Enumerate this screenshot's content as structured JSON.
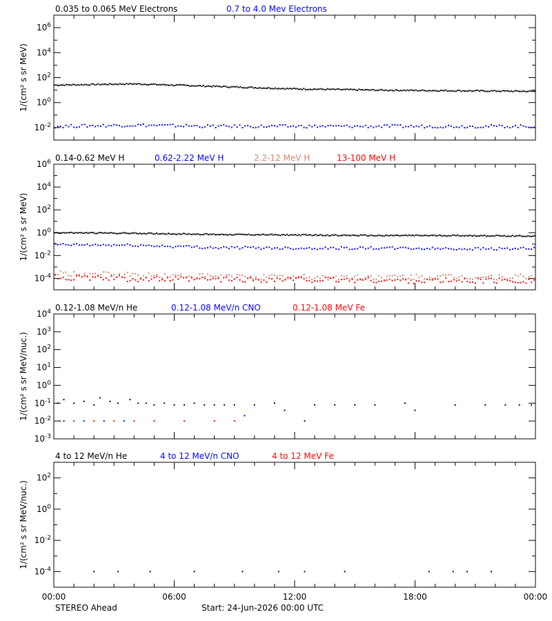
{
  "footer": {
    "spacecraft": "STEREO Ahead",
    "start": "Start: 24-Jun-2026 00:00 UTC"
  },
  "x_axis": {
    "range_hours": [
      0,
      24
    ],
    "ticks": [
      {
        "hour": 0,
        "label": "00:00"
      },
      {
        "hour": 6,
        "label": "06:00"
      },
      {
        "hour": 12,
        "label": "12:00"
      },
      {
        "hour": 18,
        "label": "18:00"
      },
      {
        "hour": 24,
        "label": "00:00"
      }
    ]
  },
  "colors": {
    "black": "#000000",
    "blue": "#0000ff",
    "tan": "#d2846e",
    "red": "#ff0000"
  },
  "chart_data": [
    {
      "type": "scatter",
      "ylabel": "1/(cm² s sr MeV)",
      "yscale": "log",
      "ylim_exp": [
        -3,
        7
      ],
      "ytick_exps": [
        -2,
        0,
        2,
        4,
        6
      ],
      "legend": [
        {
          "name": "0.035 to 0.065 MeV Electrons",
          "color": "#000000"
        },
        {
          "name": "0.7 to 4.0 Mev Electrons",
          "color": "#0000ff"
        }
      ],
      "series": [
        {
          "name": "0.035 to 0.065 MeV Electrons",
          "color": "#000000",
          "hours": [
            0,
            4,
            8,
            12,
            16,
            20,
            24
          ],
          "log10_values": [
            1.4,
            1.5,
            1.3,
            1.1,
            1.0,
            0.95,
            0.9
          ]
        },
        {
          "name": "0.7 to 4.0 Mev Electrons",
          "color": "#0000ff",
          "hours": [
            0,
            4,
            8,
            12,
            16,
            20,
            24
          ],
          "log10_values": [
            -1.9,
            -1.8,
            -1.9,
            -1.9,
            -1.9,
            -1.9,
            -1.9
          ]
        }
      ]
    },
    {
      "type": "scatter",
      "ylabel": "1/(cm² s sr MeV)",
      "yscale": "log",
      "ylim_exp": [
        -5,
        6
      ],
      "ytick_exps": [
        -4,
        -2,
        0,
        2,
        4,
        6
      ],
      "legend": [
        {
          "name": "0.14-0.62 MeV H",
          "color": "#000000"
        },
        {
          "name": "0.62-2.22 MeV H",
          "color": "#0000ff"
        },
        {
          "name": "2.2-12 MeV H",
          "color": "#d2846e"
        },
        {
          "name": "13-100 MeV H",
          "color": "#ff0000"
        }
      ],
      "series": [
        {
          "name": "0.14-0.62 MeV H",
          "color": "#000000",
          "hours": [
            0,
            4,
            8,
            12,
            16,
            20,
            24
          ],
          "log10_values": [
            0.0,
            -0.05,
            -0.15,
            -0.2,
            -0.25,
            -0.25,
            -0.3
          ]
        },
        {
          "name": "0.62-2.22 MeV H",
          "color": "#0000ff",
          "hours": [
            0,
            4,
            8,
            12,
            16,
            20,
            24
          ],
          "log10_values": [
            -1.05,
            -1.1,
            -1.3,
            -1.35,
            -1.35,
            -1.4,
            -1.4
          ]
        },
        {
          "name": "2.2-12 MeV H",
          "color": "#d2846e",
          "hours": [
            0,
            6,
            12,
            18,
            24
          ],
          "log10_values": [
            -3.6,
            -3.8,
            -3.9,
            -3.9,
            -3.9
          ]
        },
        {
          "name": "13-100 MeV H",
          "color": "#ff0000",
          "hours": [
            0,
            6,
            12,
            18,
            24
          ],
          "log10_values": [
            -3.9,
            -4.1,
            -4.1,
            -4.2,
            -4.2
          ]
        }
      ]
    },
    {
      "type": "scatter",
      "ylabel": "1/(cm² s sr MeV/nuc.)",
      "yscale": "log",
      "ylim_exp": [
        -3,
        4
      ],
      "ytick_exps": [
        -3,
        -2,
        -1,
        0,
        1,
        2,
        3,
        4
      ],
      "legend": [
        {
          "name": "0.12-1.08 MeV/n He",
          "color": "#000000"
        },
        {
          "name": "0.12-1.08 MeV/n CNO",
          "color": "#0000ff"
        },
        {
          "name": "0.12-1.08 MeV Fe",
          "color": "#ff0000"
        }
      ],
      "series": [
        {
          "name": "0.12-1.08 MeV/n He",
          "color": "#000000",
          "hours": [
            0.2,
            0.5,
            1.0,
            1.5,
            2.0,
            2.3,
            2.8,
            3.2,
            3.8,
            4.2,
            4.6,
            5.0,
            5.5,
            6.0,
            6.5,
            7.0,
            7.5,
            8.0,
            8.5,
            9.0,
            10.0,
            11.0,
            11.5,
            12.5,
            13.0,
            14.0,
            15.0,
            16.0,
            17.5,
            18.0,
            20.0,
            21.5,
            22.5,
            23.2,
            23.8
          ],
          "log10_values": [
            -1.0,
            -0.8,
            -1.0,
            -0.9,
            -1.1,
            -0.7,
            -0.9,
            -1.0,
            -0.8,
            -1.0,
            -1.0,
            -1.1,
            -1.0,
            -1.1,
            -1.1,
            -1.0,
            -1.1,
            -1.1,
            -1.1,
            -1.1,
            -1.1,
            -1.0,
            -1.4,
            -2.0,
            -1.1,
            -1.1,
            -1.1,
            -1.1,
            -1.0,
            -1.4,
            -1.1,
            -1.1,
            -1.1,
            -1.1,
            -1.1
          ]
        },
        {
          "name": "0.12-1.08 MeV/n CNO",
          "color": "#0000ff",
          "hours": [
            0.5,
            1.5,
            2.5,
            3.5,
            9.5
          ],
          "log10_values": [
            -2.0,
            -2.0,
            -2.0,
            -2.0,
            -1.7
          ]
        },
        {
          "name": "0.12-1.08 MeV Fe",
          "color": "#ff0000",
          "hours": [
            0.3,
            1.0,
            2.0,
            3.0,
            4.0,
            5.0,
            6.5,
            8.0,
            9.0
          ],
          "log10_values": [
            -2.0,
            -2.0,
            -2.0,
            -2.0,
            -2.0,
            -2.0,
            -2.0,
            -2.0,
            -2.0
          ]
        }
      ]
    },
    {
      "type": "scatter",
      "ylabel": "1/(cm² s sr MeV/nuc.)",
      "yscale": "log",
      "ylim_exp": [
        -5,
        3
      ],
      "ytick_exps": [
        -4,
        -2,
        0,
        2
      ],
      "legend": [
        {
          "name": "4 to 12 MeV/n He",
          "color": "#000000"
        },
        {
          "name": "4 to 12 MeV/n CNO",
          "color": "#0000ff"
        },
        {
          "name": "4 to 12 MeV Fe",
          "color": "#ff0000"
        }
      ],
      "series": [
        {
          "name": "4 to 12 MeV/n He",
          "color": "#000000",
          "hours": [
            2.0,
            3.2,
            4.8,
            7.0,
            9.4,
            11.2,
            12.5,
            14.5,
            18.7,
            19.9,
            20.6,
            21.8
          ],
          "log10_values": [
            -4,
            -4,
            -4,
            -4,
            -4,
            -4,
            -4,
            -4,
            -4,
            -4,
            -4,
            -4
          ]
        }
      ]
    }
  ]
}
